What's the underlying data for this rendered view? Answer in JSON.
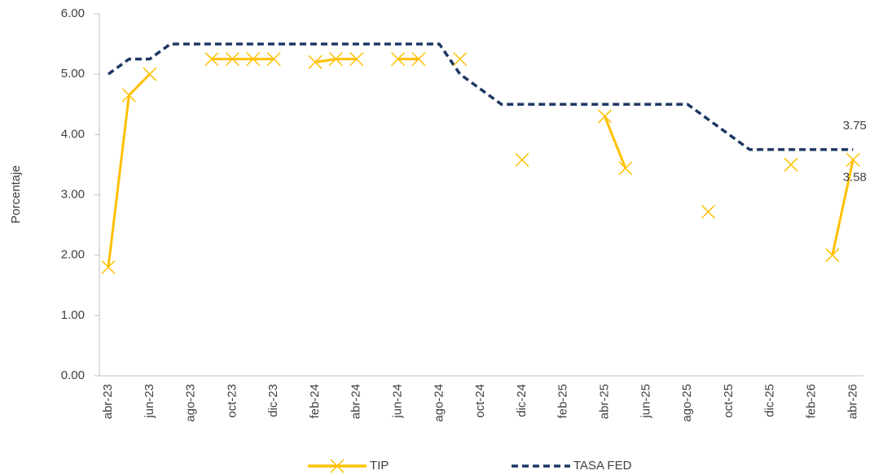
{
  "chart_data": {
    "type": "line",
    "y_label": "Porcentaje",
    "categories": [
      "abr-23",
      null,
      "jun-23",
      null,
      "ago-23",
      null,
      "oct-23",
      null,
      "dic-23",
      null,
      "feb-24",
      null,
      "abr-24",
      null,
      "jun-24",
      null,
      "ago-24",
      null,
      "oct-24",
      null,
      "dic-24",
      null,
      "feb-25",
      null,
      "abr-25",
      null,
      "jun-25",
      null,
      "ago-25",
      null,
      "oct-25",
      null,
      "dic-25",
      null,
      "feb-26",
      null,
      "abr-26"
    ],
    "series": [
      {
        "name": "TIP",
        "color": "#ffc000",
        "marker": "x",
        "dash": false,
        "label_last": true,
        "values": [
          1.8,
          4.65,
          5.0,
          null,
          null,
          5.25,
          5.25,
          5.25,
          5.25,
          null,
          5.2,
          5.25,
          5.25,
          null,
          5.25,
          5.25,
          null,
          5.25,
          null,
          null,
          3.58,
          null,
          null,
          null,
          4.3,
          3.44,
          null,
          null,
          null,
          2.72,
          null,
          null,
          null,
          3.5,
          null,
          2.0,
          3.58
        ]
      },
      {
        "name": "TASA FED",
        "color": "#1f3864",
        "marker": null,
        "dash": true,
        "label_last": true,
        "values": [
          5.0,
          5.25,
          5.25,
          5.5,
          5.5,
          5.5,
          5.5,
          5.5,
          5.5,
          5.5,
          5.5,
          5.5,
          5.5,
          5.5,
          5.5,
          5.5,
          5.5,
          5.0,
          4.75,
          4.5,
          4.5,
          4.5,
          4.5,
          4.5,
          4.5,
          4.5,
          4.5,
          4.5,
          4.5,
          4.25,
          4.0,
          3.75,
          3.75,
          3.75,
          3.75,
          3.75,
          3.75
        ]
      }
    ],
    "ylim": [
      0,
      6
    ],
    "yticks": [
      {
        "value": 0,
        "label": "0.00"
      },
      {
        "value": 1,
        "label": "1.00"
      },
      {
        "value": 2,
        "label": "2.00"
      },
      {
        "value": 3,
        "label": "3.00"
      },
      {
        "value": 4,
        "label": "4.00"
      },
      {
        "value": 5,
        "label": "5.00"
      },
      {
        "value": 6,
        "label": "6.00"
      }
    ],
    "grid": false,
    "legend": "bottom"
  }
}
